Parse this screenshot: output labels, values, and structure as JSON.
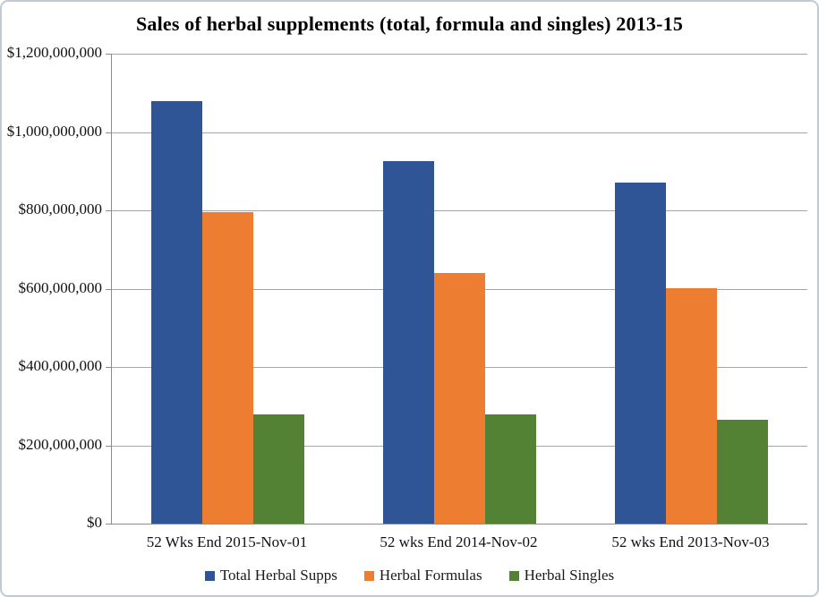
{
  "chart_data": {
    "type": "bar",
    "title": "Sales of herbal supplements (total, formula and singles) 2013-15",
    "categories": [
      "52 Wks End 2015-Nov-01",
      "52 wks End 2014-Nov-02",
      "52 wks End 2013-Nov-03"
    ],
    "series": [
      {
        "name": "Total Herbal Supps",
        "color": "#2F5597",
        "values": [
          1080000000,
          925000000,
          870000000
        ]
      },
      {
        "name": "Herbal Formulas",
        "color": "#ED7D31",
        "values": [
          795000000,
          640000000,
          602000000
        ]
      },
      {
        "name": "Herbal Singles",
        "color": "#548235",
        "values": [
          280000000,
          278000000,
          265000000
        ]
      }
    ],
    "xlabel": "",
    "ylabel": "",
    "ylim": [
      0,
      1200000000
    ],
    "grid": true,
    "legend_position": "bottom",
    "y_ticks": [
      {
        "value": 1200000000,
        "label": "$1,200,000,000"
      },
      {
        "value": 1000000000,
        "label": "$1,000,000,000"
      },
      {
        "value": 800000000,
        "label": "$800,000,000"
      },
      {
        "value": 600000000,
        "label": "$600,000,000"
      },
      {
        "value": 400000000,
        "label": "$400,000,000"
      },
      {
        "value": 200000000,
        "label": "$200,000,000"
      },
      {
        "value": 0,
        "label": "$0"
      }
    ]
  },
  "colors": {
    "gridline": "#A6A6A6",
    "axis": "#8C8C8C",
    "frame_border": "#C3C9D2",
    "text": "#111111"
  }
}
